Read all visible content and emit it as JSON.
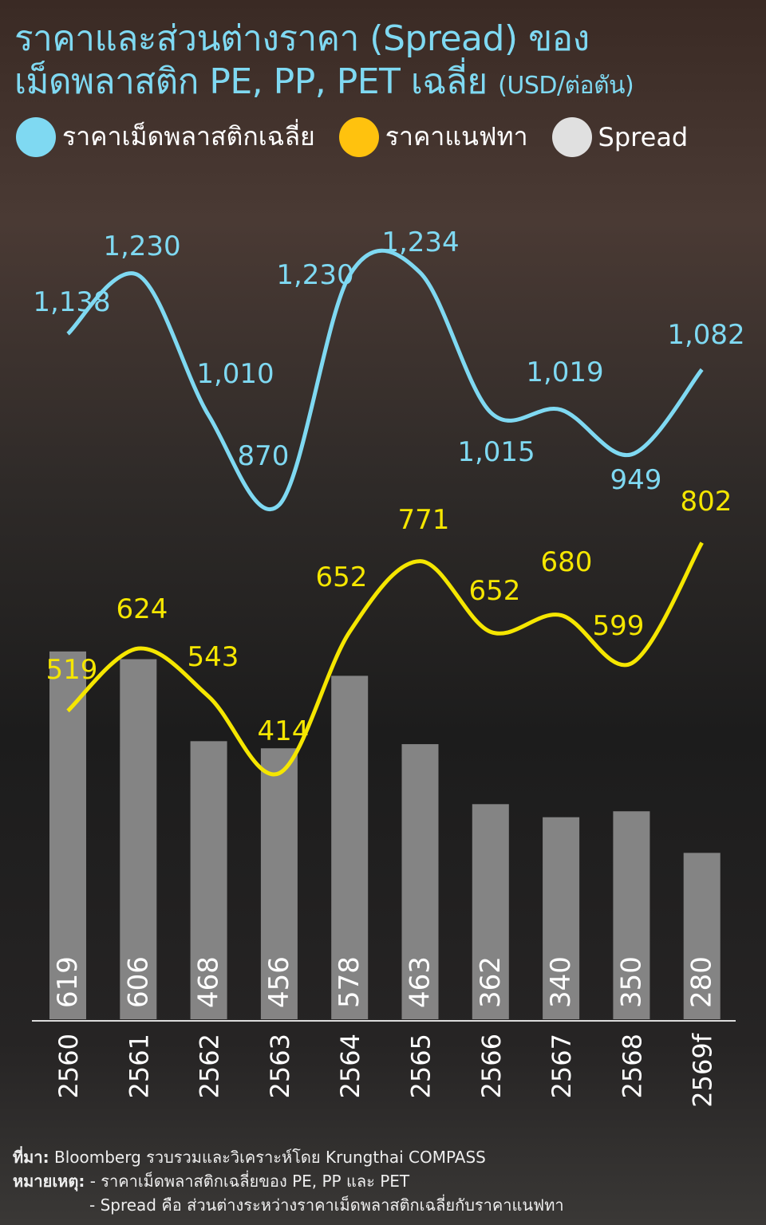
{
  "title_line1": "ราคาและส่วนต่างราคา (Spread) ของ",
  "title_line2": "เม็ดพลาสติก PE, PP, PET เฉลี่ย",
  "unit": "(USD/ต่อตัน)",
  "colors": {
    "plastic": "#7fd9f2",
    "naphtha": "#f5e600",
    "naphtha_legend": "#ffc20e",
    "spread": "#8a8a8a",
    "spread_legend": "#e0e0e0"
  },
  "chart_data": {
    "type": "bar+line",
    "categories": [
      "2560",
      "2561",
      "2562",
      "2563",
      "2564",
      "2565",
      "2566",
      "2567",
      "2568",
      "2569f"
    ],
    "series": [
      {
        "name": "ราคาเม็ดพลาสติกเฉลี่ย",
        "type": "line",
        "values": [
          1138,
          1230,
          1010,
          870,
          1230,
          1234,
          1015,
          1019,
          949,
          1082
        ]
      },
      {
        "name": "ราคาแนฟทา",
        "type": "line",
        "values": [
          519,
          624,
          543,
          414,
          652,
          771,
          652,
          680,
          599,
          802
        ]
      },
      {
        "name": "Spread",
        "type": "bar",
        "values": [
          619,
          606,
          468,
          456,
          578,
          463,
          362,
          340,
          350,
          280
        ]
      }
    ],
    "grid": false,
    "legend": "top"
  },
  "footer": {
    "source_label": "ที่มา:",
    "source_text": "Bloomberg รวบรวมและวิเคราะห์โดย Krungthai COMPASS",
    "note_label": "หมายเหตุ:",
    "note1": "- ราคาเม็ดพลาสติกเฉลี่ยของ PE, PP และ PET",
    "note2": "- Spread คือ ส่วนต่างระหว่างราคาเม็ดพลาสติกเฉลี่ยกับราคาแนฟทา"
  }
}
